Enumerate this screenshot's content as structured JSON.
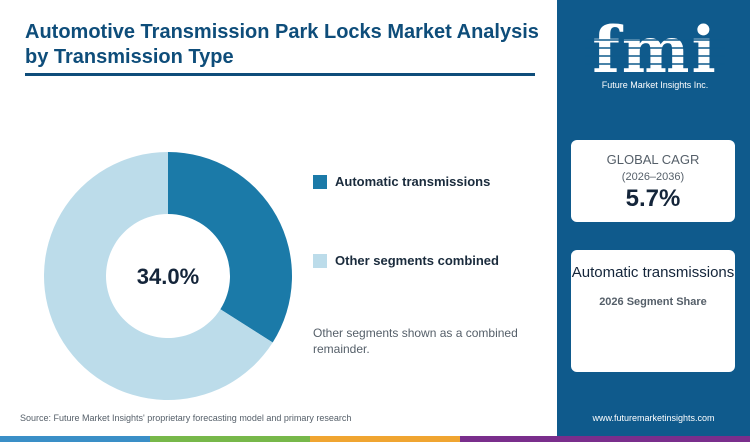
{
  "title": "Automotive Transmission Park Locks Market Analysis by Transmission Type",
  "chart_data": {
    "type": "pie",
    "categories": [
      "Automatic transmissions",
      "Other segments combined"
    ],
    "values": [
      34.0,
      66.0
    ],
    "center_label": "34.0%",
    "colors": [
      "#1b7aa8",
      "#bcdcea"
    ],
    "legend_placement": "right"
  },
  "legend": [
    {
      "label": "Automatic transmissions",
      "color": "#1b7aa8"
    },
    {
      "label": "Other segments combined",
      "color": "#bcdcea"
    }
  ],
  "note": "Other segments shown as a combined remainder.",
  "source": "Source: Future Market Insights' proprietary forecasting model and primary research",
  "brand": {
    "logo_text": "fmi",
    "logo_subtitle": "Future Market Insights Inc.",
    "website": "www.futuremarketinsights.com",
    "sidebar_color": "#0f5a8c"
  },
  "cagr_card": {
    "label": "GLOBAL CAGR",
    "period": "(2026–2036)",
    "value": "5.7%"
  },
  "segment_card": {
    "title": "Automatic transmissions",
    "caption": "2026 Segment Share"
  },
  "bottom_bar_colors": [
    "#3a8fc7",
    "#77b84a",
    "#f0a531",
    "#7a2e8c"
  ]
}
